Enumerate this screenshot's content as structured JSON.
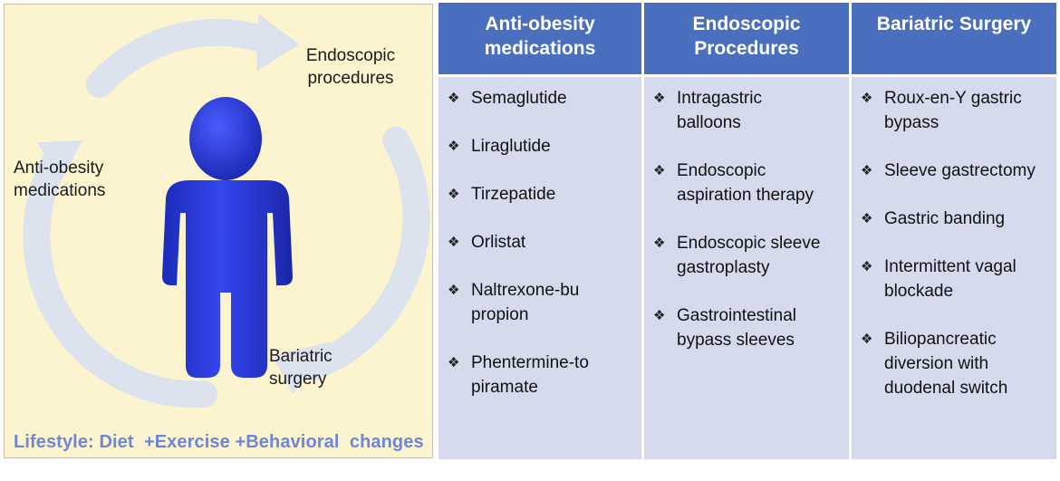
{
  "diagram": {
    "labels": {
      "endoscopic": "Endoscopic procedures",
      "anti_obesity": "Anti-obesity medications",
      "bariatric": "Bariatric surgery"
    },
    "lifestyle": "Lifestyle: Diet  +Exercise +Behavioral  changes",
    "colors": {
      "panel_bg": "#fcf4cf",
      "cycle_arrows": "#dde3ee",
      "figure": "#2233d8",
      "lifestyle_text": "#6d87d6"
    },
    "icons": [
      "person-figure-icon",
      "cycle-arrow-icon"
    ]
  },
  "table": {
    "colors": {
      "header_bg": "#4a6fbe",
      "cell_bg": "#d5daec"
    },
    "bullet_glyph": "❖",
    "columns": [
      {
        "header": "Anti-obesity medications",
        "items": [
          "Semaglutide",
          "Liraglutide",
          "Tirzepatide",
          "Orlistat",
          "Naltrexone-bupropion",
          "Phentermine-topiramate"
        ]
      },
      {
        "header": "Endoscopic Procedures",
        "items": [
          "Intragastric balloons",
          "Endoscopic aspiration therapy",
          "Endoscopic sleeve gastroplasty",
          "Gastrointestinal bypass sleeves"
        ]
      },
      {
        "header": "Bariatric Surgery",
        "items": [
          "Roux-en-Y gastric bypass",
          "Sleeve gastrectomy",
          "Gastric banding",
          "Intermittent vagal blockade",
          "Biliopancreatic diversion with duodenal switch"
        ]
      }
    ]
  }
}
